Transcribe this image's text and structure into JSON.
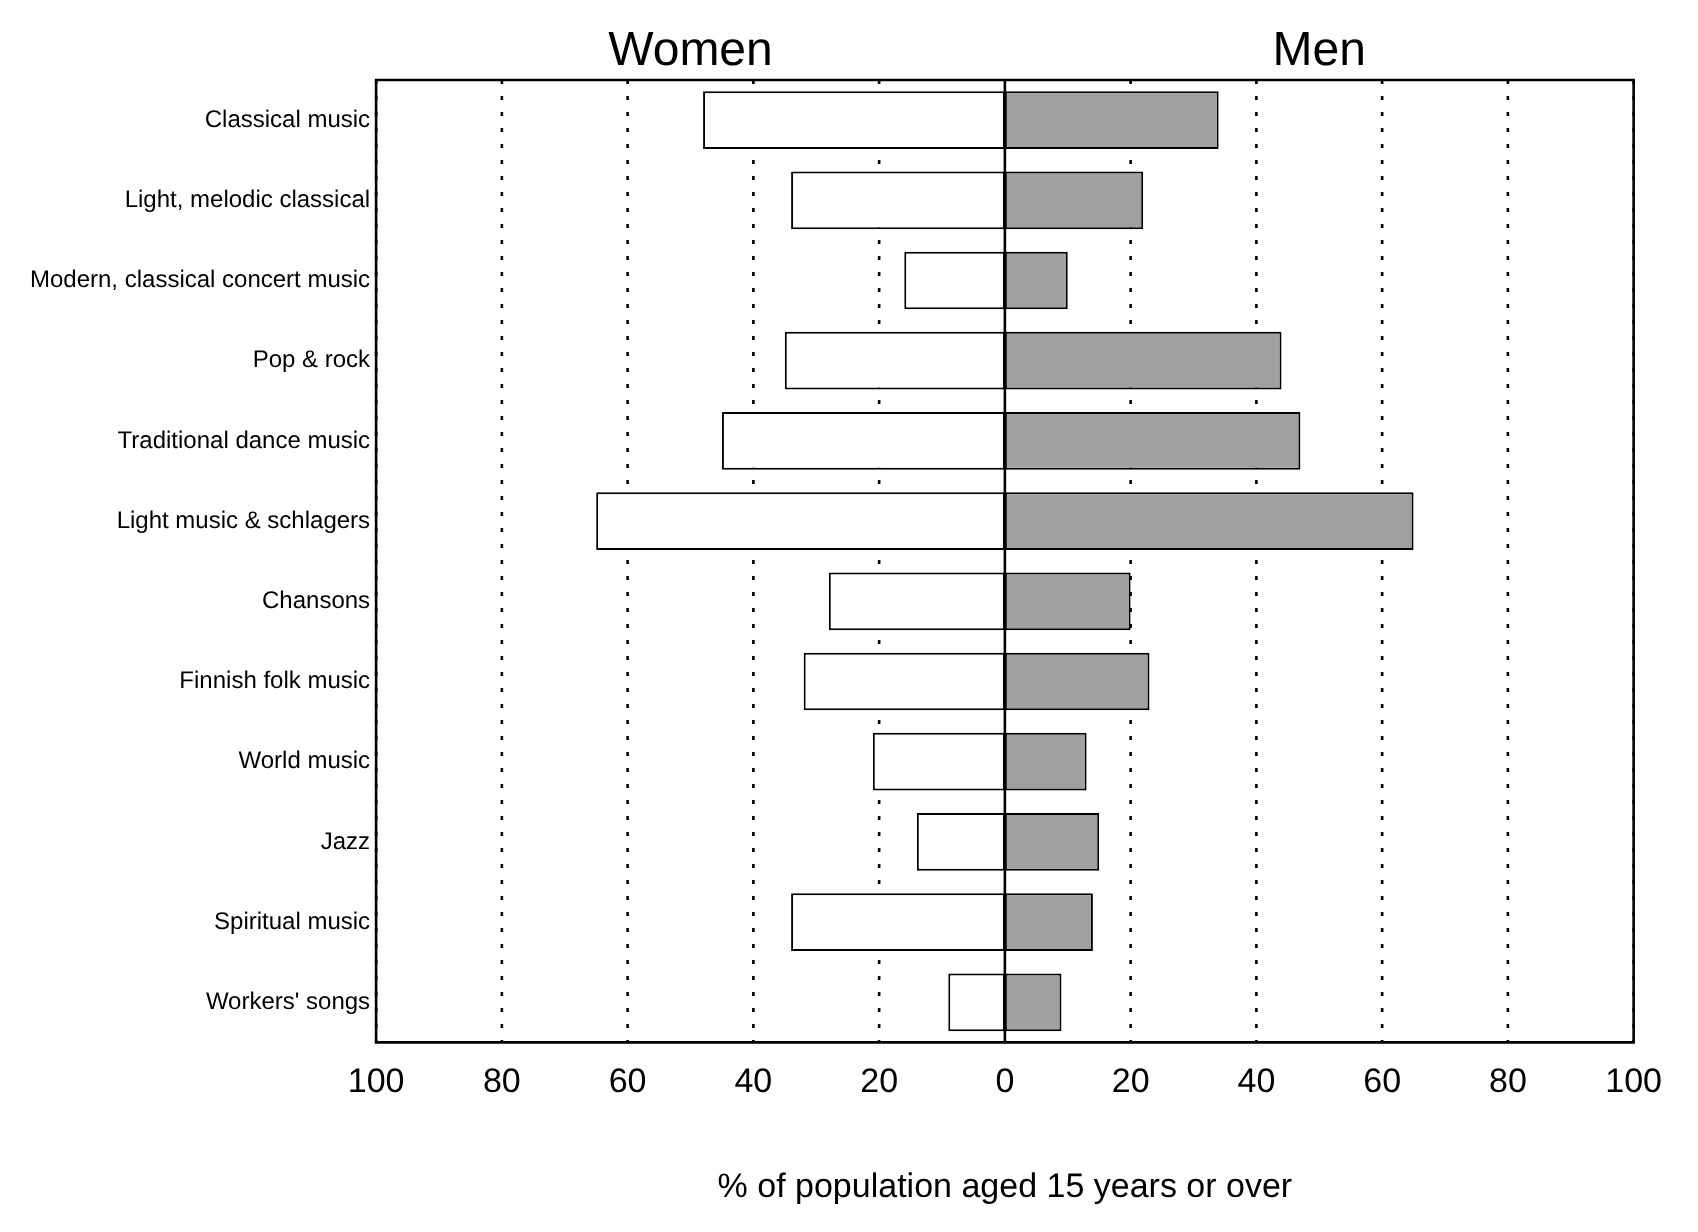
{
  "chart_data": {
    "type": "bar",
    "orientation": "horizontal",
    "stacked": true,
    "xlabel": "% of population aged 15 years or over",
    "categories": [
      "Classical music",
      "Light, melodic classical",
      "Modern, classical concert music",
      "Pop & rock",
      "Traditional dance music",
      "Light music & schlagers",
      "Chansons",
      "Finnish folk music",
      "World music",
      "Jazz",
      "Spiritual music",
      "Workers' songs"
    ],
    "series": [
      {
        "name": "Women",
        "color": "#ffffff",
        "values": [
          -48,
          -34,
          -16,
          -35,
          -45,
          -65,
          -28,
          -32,
          -21,
          -14,
          -34,
          -9
        ]
      },
      {
        "name": "Men",
        "color": "#a0a0a0",
        "values": [
          34,
          22,
          10,
          44,
          47,
          65,
          20,
          23,
          13,
          15,
          14,
          9
        ]
      }
    ],
    "xlim": [
      -100,
      100
    ],
    "xticks": [
      {
        "value": -100,
        "label": "100"
      },
      {
        "value": -80,
        "label": "80"
      },
      {
        "value": -60,
        "label": "60"
      },
      {
        "value": -40,
        "label": "40"
      },
      {
        "value": -20,
        "label": "20"
      },
      0,
      20,
      40,
      60,
      80,
      100
    ],
    "grid": "x",
    "legend": false
  }
}
